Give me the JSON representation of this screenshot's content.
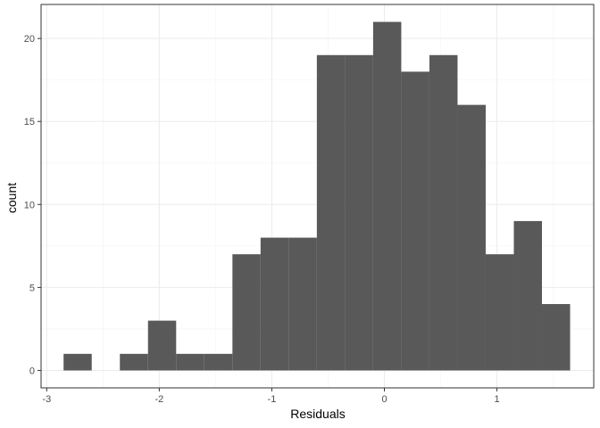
{
  "chart_data": {
    "type": "bar",
    "subtype": "histogram",
    "xlabel": "Residuals",
    "ylabel": "count",
    "xlim": [
      -3.05,
      1.86
    ],
    "ylim": [
      -1.05,
      22.05
    ],
    "x_ticks": [
      -3,
      -2,
      -1,
      0,
      1
    ],
    "x_tick_labels": [
      "-3",
      "-2",
      "-1",
      "0",
      "1"
    ],
    "y_ticks": [
      0,
      5,
      10,
      15,
      20
    ],
    "y_tick_labels": [
      "0",
      "5",
      "10",
      "15",
      "20"
    ],
    "bin_width": 0.25,
    "bins": [
      {
        "x0": -2.85,
        "x1": -2.6,
        "count": 1
      },
      {
        "x0": -2.6,
        "x1": -2.35,
        "count": 0
      },
      {
        "x0": -2.35,
        "x1": -2.1,
        "count": 1
      },
      {
        "x0": -2.1,
        "x1": -1.85,
        "count": 3
      },
      {
        "x0": -1.85,
        "x1": -1.6,
        "count": 1
      },
      {
        "x0": -1.6,
        "x1": -1.35,
        "count": 1
      },
      {
        "x0": -1.35,
        "x1": -1.1,
        "count": 7
      },
      {
        "x0": -1.1,
        "x1": -0.85,
        "count": 8
      },
      {
        "x0": -0.85,
        "x1": -0.6,
        "count": 8
      },
      {
        "x0": -0.6,
        "x1": -0.35,
        "count": 19
      },
      {
        "x0": -0.35,
        "x1": -0.1,
        "count": 19
      },
      {
        "x0": -0.1,
        "x1": 0.15,
        "count": 21
      },
      {
        "x0": 0.15,
        "x1": 0.4,
        "count": 18
      },
      {
        "x0": 0.4,
        "x1": 0.65,
        "count": 19
      },
      {
        "x0": 0.65,
        "x1": 0.9,
        "count": 16
      },
      {
        "x0": 0.9,
        "x1": 1.15,
        "count": 7
      },
      {
        "x0": 1.15,
        "x1": 1.4,
        "count": 9
      },
      {
        "x0": 1.4,
        "x1": 1.65,
        "count": 4
      }
    ],
    "grid": true,
    "bar_color": "#595959",
    "grid_major_color": "#ebebeb",
    "grid_minor_color": "#f5f5f5",
    "panel_border_color": "#333333"
  }
}
